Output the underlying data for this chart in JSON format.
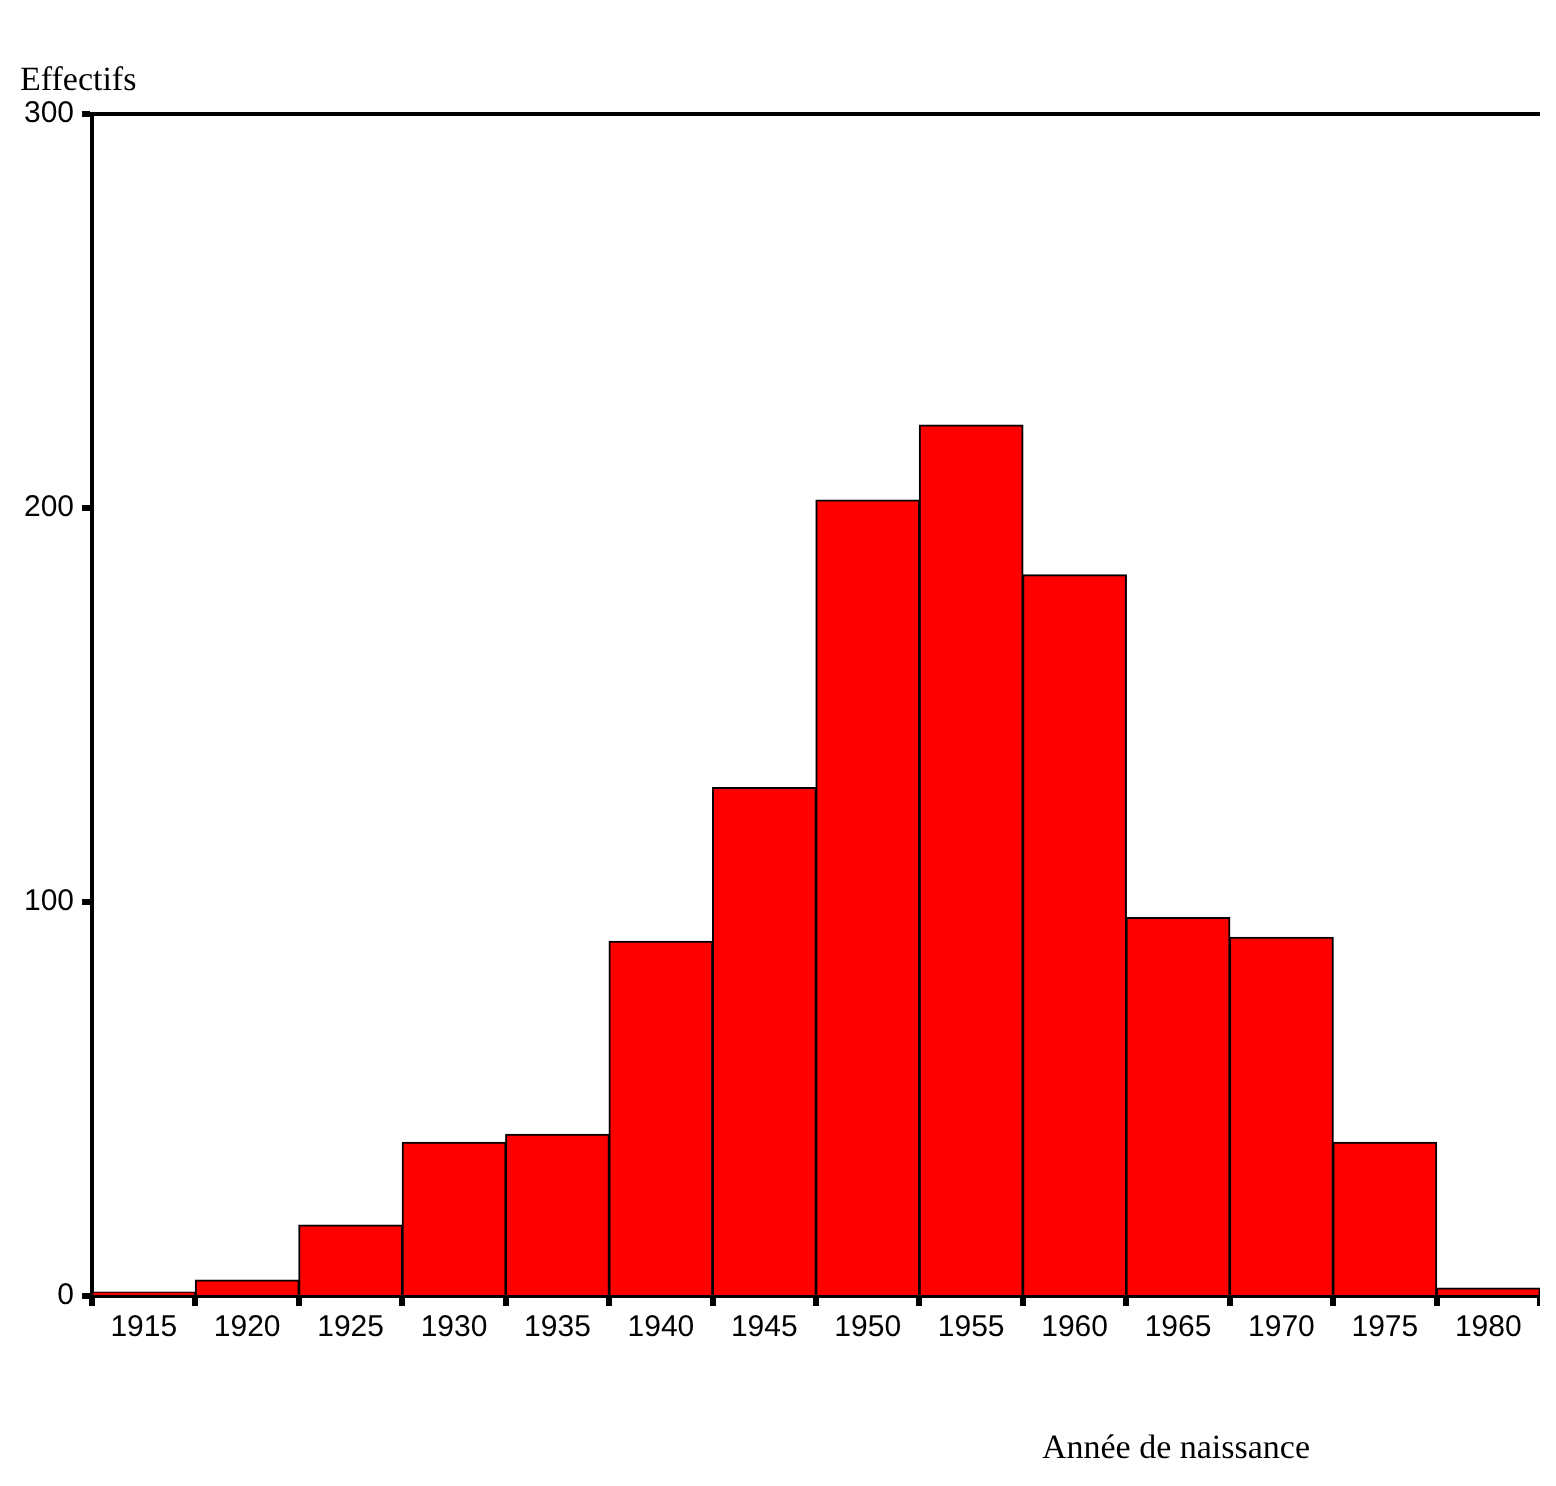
{
  "chart_data": {
    "type": "histogram",
    "xlabel": "Année de naissance",
    "ylabel": "Effectifs",
    "bins": [
      1912.5,
      1917.5,
      1922.5,
      1927.5,
      1932.5,
      1937.5,
      1942.5,
      1947.5,
      1952.5,
      1957.5,
      1962.5,
      1967.5,
      1972.5,
      1977.5,
      1982.5
    ],
    "values": [
      1,
      4,
      18,
      39,
      41,
      90,
      129,
      202,
      221,
      183,
      96,
      91,
      39,
      2
    ],
    "color": "#ff0000",
    "xlim": [
      1912.5,
      1982.5
    ],
    "xticks": [
      1915,
      1920,
      1925,
      1930,
      1935,
      1940,
      1945,
      1950,
      1955,
      1960,
      1965,
      1970,
      1975,
      1980
    ],
    "ylim": [
      0,
      300
    ],
    "yticks": [
      0,
      100,
      200,
      300
    ],
    "grid": false,
    "legend": false
  }
}
